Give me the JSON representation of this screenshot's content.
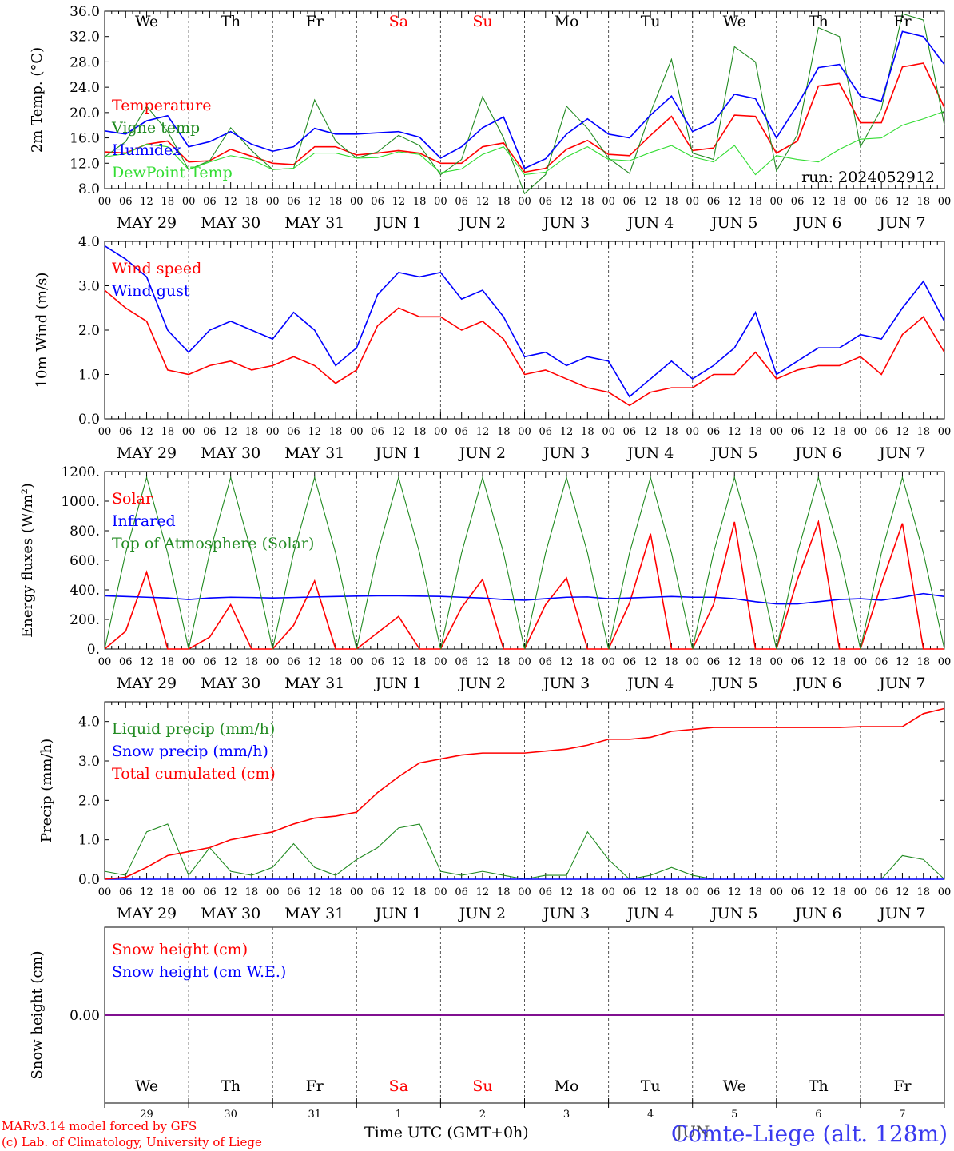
{
  "run_label": "run: 2024052912",
  "x_hour_ticks": [
    "00",
    "06",
    "12",
    "18"
  ],
  "x_date_labels": [
    "MAY 29",
    "MAY 30",
    "MAY 31",
    "JUN  1",
    "JUN  2",
    "JUN  3",
    "JUN  4",
    "JUN  5",
    "JUN  6",
    "JUN  7"
  ],
  "weekdays": [
    {
      "label": "We",
      "color": "#000000"
    },
    {
      "label": "Th",
      "color": "#000000"
    },
    {
      "label": "Fr",
      "color": "#000000"
    },
    {
      "label": "Sa",
      "color": "#ff0000"
    },
    {
      "label": "Su",
      "color": "#ff0000"
    },
    {
      "label": "Mo",
      "color": "#000000"
    },
    {
      "label": "Tu",
      "color": "#000000"
    },
    {
      "label": "We",
      "color": "#000000"
    },
    {
      "label": "Th",
      "color": "#000000"
    },
    {
      "label": "Fr",
      "color": "#000000"
    }
  ],
  "bottom_day_numbers": [
    "29",
    "30",
    "31",
    "1",
    "2",
    "3",
    "4",
    "5",
    "6",
    "7"
  ],
  "bottom_month": "JUN",
  "footer": {
    "credit_line1": "MARv3.14 model forced by GFS",
    "credit_line2": "(c) Lab. of Climatology, University of Liege",
    "time_axis_label": "Time UTC (GMT+0h)",
    "station": "Comte-Liege (alt. 128m)"
  },
  "chart_data": [
    {
      "type": "line",
      "ylabel": "2m Temp. (°C)",
      "ylim": [
        8,
        36
      ],
      "y_ticks": [
        "8.0",
        "12.0",
        "16.0",
        "20.0",
        "24.0",
        "28.0",
        "32.0",
        "36.0"
      ],
      "x": [
        0,
        6,
        12,
        18,
        24,
        30,
        36,
        42,
        48,
        54,
        60,
        66,
        72,
        78,
        84,
        90,
        96,
        102,
        108,
        114,
        120,
        126,
        132,
        138,
        144,
        150,
        156,
        162,
        168,
        174,
        180,
        186,
        192,
        198,
        204,
        210,
        216,
        222,
        228,
        234,
        240
      ],
      "series": [
        {
          "name": "Temperature",
          "color": "#ff0000",
          "values": [
            13.8,
            13.6,
            15.0,
            15.5,
            12.2,
            12.4,
            14.2,
            13.1,
            12.0,
            11.8,
            14.6,
            14.6,
            13.3,
            13.6,
            14.0,
            13.6,
            12.0,
            12.0,
            14.6,
            15.2,
            10.6,
            11.2,
            14.2,
            15.6,
            13.4,
            13.2,
            16.4,
            19.4,
            14.0,
            14.4,
            19.6,
            19.4,
            13.6,
            15.5,
            24.2,
            24.6,
            18.4,
            18.4,
            27.2,
            27.8,
            20.8
          ]
        },
        {
          "name": "Vigne temp",
          "color": "#228b22",
          "values": [
            13.0,
            15.4,
            21.0,
            17.0,
            11.0,
            12.4,
            17.6,
            14.0,
            11.0,
            11.2,
            22.0,
            15.5,
            12.8,
            13.8,
            16.4,
            14.8,
            10.2,
            12.6,
            22.5,
            16.0,
            7.2,
            10.2,
            21.0,
            17.5,
            12.8,
            10.4,
            20.0,
            28.4,
            13.6,
            12.6,
            30.4,
            28.0,
            10.8,
            16.5,
            33.4,
            32.0,
            14.6,
            20.6,
            35.6,
            34.6,
            18.0
          ]
        },
        {
          "name": "Humidex",
          "color": "#0000ff",
          "values": [
            17.1,
            16.6,
            18.7,
            19.5,
            14.6,
            15.4,
            17.0,
            15.0,
            13.9,
            14.6,
            17.5,
            16.6,
            16.6,
            16.8,
            17.0,
            16.1,
            12.8,
            14.6,
            17.6,
            19.3,
            11.2,
            12.7,
            16.6,
            19.0,
            16.6,
            16.0,
            19.6,
            22.6,
            17.0,
            18.5,
            22.9,
            22.2,
            16.0,
            21.2,
            27.1,
            27.6,
            22.6,
            21.8,
            32.8,
            32.0,
            27.6
          ]
        },
        {
          "name": "DewPoint Temp",
          "color": "#33dd33",
          "values": [
            13.0,
            13.5,
            15.0,
            14.6,
            11.0,
            12.2,
            13.2,
            12.6,
            11.0,
            11.2,
            13.6,
            13.6,
            12.8,
            12.9,
            13.8,
            13.4,
            10.5,
            11.1,
            13.4,
            14.6,
            10.2,
            10.6,
            13.0,
            14.6,
            12.6,
            12.4,
            13.7,
            14.8,
            13.0,
            12.2,
            14.8,
            10.2,
            13.2,
            12.6,
            12.2,
            14.2,
            15.8,
            16.0,
            18.0,
            19.0,
            20.2
          ]
        }
      ]
    },
    {
      "type": "line",
      "ylabel": "10m Wind (m/s)",
      "ylim": [
        0,
        4
      ],
      "y_ticks": [
        "0.0",
        "1.0",
        "2.0",
        "3.0",
        "4.0"
      ],
      "x": [
        0,
        6,
        12,
        18,
        24,
        30,
        36,
        42,
        48,
        54,
        60,
        66,
        72,
        78,
        84,
        90,
        96,
        102,
        108,
        114,
        120,
        126,
        132,
        138,
        144,
        150,
        156,
        162,
        168,
        174,
        180,
        186,
        192,
        198,
        204,
        210,
        216,
        222,
        228,
        234,
        240
      ],
      "series": [
        {
          "name": "Wind speed",
          "color": "#ff0000",
          "values": [
            2.9,
            2.5,
            2.2,
            1.1,
            1.0,
            1.2,
            1.3,
            1.1,
            1.2,
            1.4,
            1.2,
            0.8,
            1.1,
            2.1,
            2.5,
            2.3,
            2.3,
            2.0,
            2.2,
            1.8,
            1.0,
            1.1,
            0.9,
            0.7,
            0.6,
            0.3,
            0.6,
            0.7,
            0.7,
            1.0,
            1.0,
            1.5,
            0.9,
            1.1,
            1.2,
            1.2,
            1.4,
            1.0,
            1.9,
            2.3,
            1.5
          ]
        },
        {
          "name": "Wind gust",
          "color": "#0000ff",
          "values": [
            3.9,
            3.6,
            3.2,
            2.0,
            1.5,
            2.0,
            2.2,
            2.0,
            1.8,
            2.4,
            2.0,
            1.2,
            1.6,
            2.8,
            3.3,
            3.2,
            3.3,
            2.7,
            2.9,
            2.3,
            1.4,
            1.5,
            1.2,
            1.4,
            1.3,
            0.5,
            0.9,
            1.3,
            0.9,
            1.2,
            1.6,
            2.4,
            1.0,
            1.3,
            1.6,
            1.6,
            1.9,
            1.8,
            2.5,
            3.1,
            2.2
          ]
        }
      ]
    },
    {
      "type": "line",
      "ylabel": "Energy fluxes (W/m²)",
      "ylim": [
        0,
        1200
      ],
      "y_ticks": [
        "0.",
        "200.",
        "400.",
        "600.",
        "800.",
        "1000.",
        "1200."
      ],
      "x": [
        0,
        6,
        12,
        18,
        24,
        30,
        36,
        42,
        48,
        54,
        60,
        66,
        72,
        78,
        84,
        90,
        96,
        102,
        108,
        114,
        120,
        126,
        132,
        138,
        144,
        150,
        156,
        162,
        168,
        174,
        180,
        186,
        192,
        198,
        204,
        210,
        216,
        222,
        228,
        234,
        240
      ],
      "series": [
        {
          "name": "Solar",
          "color": "#ff0000",
          "values": [
            0,
            120,
            520,
            0,
            0,
            80,
            300,
            0,
            0,
            160,
            460,
            0,
            0,
            110,
            220,
            0,
            0,
            280,
            470,
            0,
            0,
            300,
            480,
            0,
            0,
            310,
            780,
            0,
            0,
            300,
            860,
            0,
            0,
            470,
            860,
            0,
            0,
            440,
            850,
            0,
            0
          ]
        },
        {
          "name": "Infrared",
          "color": "#0000ff",
          "values": [
            360,
            355,
            350,
            345,
            335,
            345,
            350,
            348,
            345,
            348,
            352,
            355,
            358,
            360,
            360,
            358,
            356,
            350,
            345,
            335,
            330,
            340,
            350,
            352,
            340,
            345,
            350,
            355,
            350,
            350,
            340,
            320,
            305,
            305,
            320,
            335,
            340,
            330,
            350,
            375,
            355
          ]
        },
        {
          "name": "Top of Atmosphere (Solar)",
          "color": "#228b22",
          "values": [
            0,
            650,
            1160,
            650,
            0,
            650,
            1160,
            650,
            0,
            650,
            1160,
            650,
            0,
            650,
            1160,
            650,
            0,
            650,
            1160,
            650,
            0,
            650,
            1160,
            650,
            0,
            650,
            1160,
            650,
            0,
            650,
            1160,
            650,
            0,
            650,
            1160,
            650,
            0,
            650,
            1160,
            650,
            0
          ]
        }
      ]
    },
    {
      "type": "line",
      "ylabel": "Precip (mm/h)",
      "ylim": [
        0,
        4.5
      ],
      "y_ticks": [
        "0.0",
        "1.0",
        "2.0",
        "3.0",
        "4.0"
      ],
      "x": [
        0,
        6,
        12,
        18,
        24,
        30,
        36,
        42,
        48,
        54,
        60,
        66,
        72,
        78,
        84,
        90,
        96,
        102,
        108,
        114,
        120,
        126,
        132,
        138,
        144,
        150,
        156,
        162,
        168,
        174,
        180,
        186,
        192,
        198,
        204,
        210,
        216,
        222,
        228,
        234,
        240
      ],
      "series": [
        {
          "name": "Liquid precip (mm/h)",
          "color": "#228b22",
          "values": [
            0.2,
            0.1,
            1.2,
            1.4,
            0.1,
            0.8,
            0.2,
            0.1,
            0.3,
            0.9,
            0.3,
            0.1,
            0.5,
            0.8,
            1.3,
            1.4,
            0.2,
            0.1,
            0.2,
            0.1,
            0.0,
            0.1,
            0.1,
            1.2,
            0.5,
            0.0,
            0.1,
            0.3,
            0.1,
            0.0,
            0.0,
            0.0,
            0.0,
            0.0,
            0.0,
            0.0,
            0.0,
            0.0,
            0.6,
            0.5,
            0.0
          ]
        },
        {
          "name": "Snow precip (mm/h)",
          "color": "#0000ff",
          "values": [
            0,
            0,
            0,
            0,
            0,
            0,
            0,
            0,
            0,
            0,
            0,
            0,
            0,
            0,
            0,
            0,
            0,
            0,
            0,
            0,
            0,
            0,
            0,
            0,
            0,
            0,
            0,
            0,
            0,
            0,
            0,
            0,
            0,
            0,
            0,
            0,
            0,
            0,
            0,
            0,
            0
          ]
        },
        {
          "name": "Total cumulated (cm)",
          "color": "#ff0000",
          "values": [
            0.0,
            0.05,
            0.3,
            0.6,
            0.7,
            0.8,
            1.0,
            1.1,
            1.2,
            1.4,
            1.55,
            1.6,
            1.7,
            2.2,
            2.6,
            2.95,
            3.05,
            3.15,
            3.2,
            3.2,
            3.2,
            3.25,
            3.3,
            3.4,
            3.55,
            3.55,
            3.6,
            3.75,
            3.8,
            3.85,
            3.85,
            3.85,
            3.85,
            3.85,
            3.85,
            3.85,
            3.87,
            3.87,
            3.87,
            4.2,
            4.33
          ]
        }
      ]
    },
    {
      "type": "line",
      "ylabel": "Snow height (cm)",
      "y_ticks": [
        "0.00"
      ],
      "x": [
        0,
        240
      ],
      "series": [
        {
          "name": "Snow height (cm)",
          "color": "#ff0000",
          "values": [
            0,
            0
          ]
        },
        {
          "name": "Snow height (cm W.E.)",
          "color": "#0000ff",
          "values": [
            0,
            0
          ]
        }
      ]
    }
  ]
}
